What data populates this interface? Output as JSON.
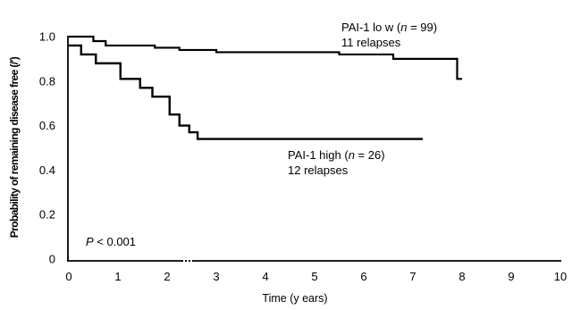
{
  "chart_data": {
    "type": "line",
    "step": true,
    "title": "",
    "xlabel": "Time (y ears)",
    "ylabel": "Probability of remaining disease free (/′)",
    "xlim": [
      0,
      10
    ],
    "ylim": [
      0,
      1.0
    ],
    "x_ticks": [
      "0",
      "1",
      "2",
      "3",
      "4",
      "5",
      "6",
      "7",
      "8",
      "9",
      "10"
    ],
    "y_ticks": [
      "0",
      "0.2",
      "0.4",
      "0.6",
      "0.8",
      "1.0"
    ],
    "grid": false,
    "legend": "none",
    "series": [
      {
        "name": "PAI-1 lo w",
        "x": [
          0,
          0.5,
          0.75,
          1.75,
          2.25,
          3.0,
          5.5,
          6.6,
          7.9,
          7.9,
          8.0
        ],
        "y": [
          1.0,
          0.98,
          0.96,
          0.95,
          0.94,
          0.93,
          0.92,
          0.9,
          0.89,
          0.81,
          0.81
        ]
      },
      {
        "name": "PAI-1 high",
        "x": [
          0,
          0.25,
          0.55,
          1.05,
          1.45,
          1.7,
          2.05,
          2.25,
          2.45,
          2.62,
          7.2
        ],
        "y": [
          0.96,
          0.92,
          0.88,
          0.81,
          0.77,
          0.73,
          0.65,
          0.6,
          0.57,
          0.54,
          0.54
        ]
      }
    ],
    "annotations": {
      "low_label_prefix": "PAI-1 lo w (",
      "low_n_label": "n",
      "low_n_value": " = 99)",
      "low_relapses": "11 relapses",
      "high_label_prefix": "PAI-1 high (",
      "high_n_label": "n",
      "high_n_value": " = 26)",
      "high_relapses": "12 relapses",
      "p_label": "P",
      "p_value": " < 0.001"
    }
  }
}
